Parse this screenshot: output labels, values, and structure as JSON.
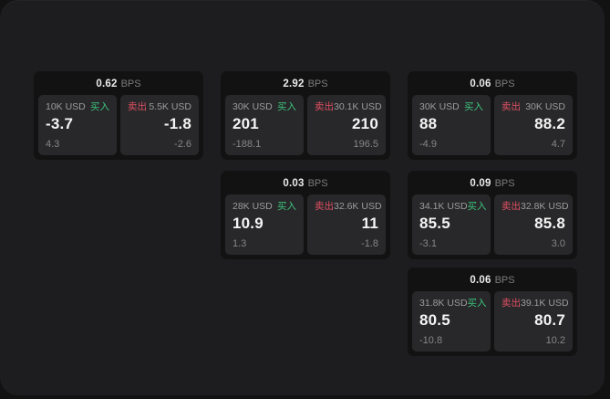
{
  "labels": {
    "bps": "BPS",
    "buy": "买入",
    "sell": "卖出"
  },
  "colors": {
    "background": "#121212",
    "surface": "#1d1d1f",
    "card": "#121212",
    "pane": "#28282a",
    "buy_green": "#3dc37c",
    "sell_red": "#de4f63",
    "primary_text": "#f4f4f4",
    "muted_text": "#9c9c9c"
  },
  "cards": [
    {
      "bps": "0.62",
      "row": 0,
      "col": 0,
      "buy": {
        "amount": "10K USD",
        "price": "-3.7",
        "delta": "4.3"
      },
      "sell": {
        "amount": "5.5K USD",
        "price": "-1.8",
        "delta": "-2.6"
      }
    },
    {
      "bps": "2.92",
      "row": 0,
      "col": 1,
      "buy": {
        "amount": "30K USD",
        "price": "201",
        "delta": "-188.1"
      },
      "sell": {
        "amount": "30.1K USD",
        "price": "210",
        "delta": "196.5"
      }
    },
    {
      "bps": "0.06",
      "row": 0,
      "col": 2,
      "buy": {
        "amount": "30K USD",
        "price": "88",
        "delta": "-4.9"
      },
      "sell": {
        "amount": "30K USD",
        "price": "88.2",
        "delta": "4.7"
      }
    },
    {
      "bps": "0.03",
      "row": 1,
      "col": 1,
      "buy": {
        "amount": "28K USD",
        "price": "10.9",
        "delta": "1.3"
      },
      "sell": {
        "amount": "32.6K USD",
        "price": "11",
        "delta": "-1.8"
      }
    },
    {
      "bps": "0.09",
      "row": 1,
      "col": 2,
      "buy": {
        "amount": "34.1K USD",
        "price": "85.5",
        "delta": "-3.1"
      },
      "sell": {
        "amount": "32.8K USD",
        "price": "85.8",
        "delta": "3.0"
      }
    },
    {
      "bps": "0.06",
      "row": 2,
      "col": 2,
      "buy": {
        "amount": "31.8K USD",
        "price": "80.5",
        "delta": "-10.8"
      },
      "sell": {
        "amount": "39.1K USD",
        "price": "80.7",
        "delta": "10.2"
      }
    }
  ]
}
